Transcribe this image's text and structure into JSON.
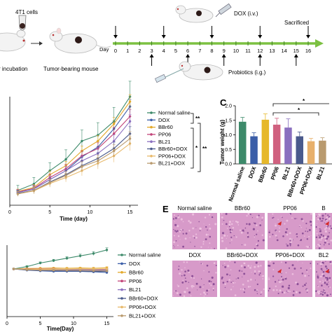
{
  "schema": {
    "cells_label": "4T1 cells",
    "incubation_label": "r incubation",
    "tumor_mouse_label": "Tumor-bearing mouse",
    "dox_label": "DOX (i.v.)",
    "probiotics_label": "Probiotics (i.g.)",
    "sacrificed_label": "Sacrificed",
    "day_label": "Day",
    "days": [
      "0",
      "1",
      "2",
      "3",
      "4",
      "5",
      "6",
      "7",
      "8",
      "9",
      "10",
      "11",
      "12",
      "13",
      "14",
      "15",
      "16"
    ],
    "dox_days": [
      0,
      4,
      8,
      12
    ],
    "probiotic_days": [
      3,
      6,
      9,
      12,
      15
    ]
  },
  "panels": {
    "c": "C",
    "e": "E"
  },
  "chart_data": [
    {
      "type": "line",
      "xlabel": "Time (day)",
      "ylabel": "",
      "x": [
        1,
        3,
        5,
        7,
        9,
        11,
        13,
        15
      ],
      "xlim": [
        0,
        16
      ],
      "ylim": [
        0,
        2200
      ],
      "xticks": [
        "0",
        "5",
        "10",
        "15"
      ],
      "series": [
        {
          "name": "Normal saline",
          "color": "#3d8a6a",
          "values": [
            300,
            430,
            700,
            930,
            1300,
            1420,
            1700,
            2200
          ]
        },
        {
          "name": "DOX",
          "color": "#3b5ea8",
          "values": [
            260,
            330,
            520,
            700,
            980,
            1180,
            1550,
            2000
          ]
        },
        {
          "name": "BBr60",
          "color": "#e3a92b",
          "values": [
            280,
            360,
            620,
            800,
            1100,
            1300,
            1650,
            2100
          ]
        },
        {
          "name": "PP06",
          "color": "#c2457a",
          "values": [
            270,
            340,
            560,
            740,
            1000,
            1150,
            1450,
            1800
          ]
        },
        {
          "name": "BL21",
          "color": "#8a6fbf",
          "values": [
            260,
            330,
            520,
            700,
            900,
            1050,
            1300,
            1700
          ]
        },
        {
          "name": "BBr60+DOX",
          "color": "#4a5a8c",
          "values": [
            240,
            300,
            470,
            620,
            800,
            950,
            1150,
            1450
          ]
        },
        {
          "name": "PP06+DOX",
          "color": "#e8b96b",
          "values": [
            230,
            290,
            440,
            560,
            700,
            850,
            1000,
            1250
          ]
        },
        {
          "name": "BL21+DOX",
          "color": "#b99a6e",
          "values": [
            230,
            300,
            460,
            600,
            780,
            900,
            1100,
            1350
          ]
        }
      ],
      "sig": [
        "**",
        "*",
        "**"
      ]
    },
    {
      "type": "bar",
      "panel": "C",
      "ylabel": "Tumor weight (g)",
      "categories": [
        "Normal saline",
        "DOX",
        "BBr60",
        "PP06",
        "BL21",
        "BBr60+DOX",
        "PP06+DOX",
        "BL21"
      ],
      "values": [
        1.45,
        0.95,
        1.52,
        1.35,
        1.25,
        0.95,
        0.78,
        0.8
      ],
      "errors": [
        0.15,
        0.12,
        0.2,
        0.22,
        0.3,
        0.15,
        0.1,
        0.1
      ],
      "colors": [
        "#3d8a6a",
        "#3b5ea8",
        "#e6b82a",
        "#d0607f",
        "#8a6fbf",
        "#4a5a8c",
        "#e8b06b",
        "#b99a6e"
      ],
      "ylim": [
        0,
        2.0
      ],
      "yticks": [
        "0.0",
        "0.5",
        "1.0",
        "1.5",
        "2.0"
      ],
      "sig": [
        "*",
        "*"
      ]
    },
    {
      "type": "line",
      "xlabel": "Time(Day)",
      "x": [
        1,
        3,
        5,
        7,
        9,
        11,
        13,
        15
      ],
      "xlim": [
        0,
        16
      ],
      "ylim": [
        0,
        30
      ],
      "xticks": [
        "0",
        "5",
        "10",
        "15"
      ],
      "series": [
        {
          "name": "Normal saline",
          "color": "#3d8a6a",
          "values": [
            20,
            21,
            22.5,
            23.5,
            24.5,
            25.5,
            26.5,
            28
          ]
        },
        {
          "name": "DOX",
          "color": "#3b5ea8",
          "values": [
            20,
            19.5,
            19.2,
            19,
            19,
            19,
            18.8,
            18.5
          ]
        },
        {
          "name": "BBr60",
          "color": "#e3a92b",
          "values": [
            20,
            20.2,
            20.3,
            20.4,
            20.3,
            20.4,
            20.3,
            20.5
          ]
        },
        {
          "name": "PP06",
          "color": "#c2457a",
          "values": [
            20,
            20,
            19.9,
            20,
            19.8,
            19.9,
            19.8,
            19.9
          ]
        },
        {
          "name": "BL21",
          "color": "#8a6fbf",
          "values": [
            20,
            19.8,
            19.7,
            19.8,
            19.6,
            19.7,
            19.5,
            19.6
          ]
        },
        {
          "name": "BBr60+DOX",
          "color": "#4a5a8c",
          "values": [
            20,
            19.6,
            19.4,
            19.3,
            19.2,
            19.1,
            19.0,
            19.0
          ]
        },
        {
          "name": "PP06+DOX",
          "color": "#e8b96b",
          "values": [
            20,
            19.9,
            19.8,
            19.9,
            19.9,
            20,
            19.9,
            20
          ]
        },
        {
          "name": "BL21+DOX",
          "color": "#b99a6e",
          "values": [
            20,
            19.7,
            19.5,
            19.5,
            19.4,
            19.4,
            19.3,
            19.2
          ]
        }
      ]
    }
  ],
  "histology": {
    "labels": [
      "Normal saline",
      "BBr60",
      "PP06",
      "B",
      "DOX",
      "BBr60+DOX",
      "PP06+DOX",
      "BL2"
    ]
  }
}
